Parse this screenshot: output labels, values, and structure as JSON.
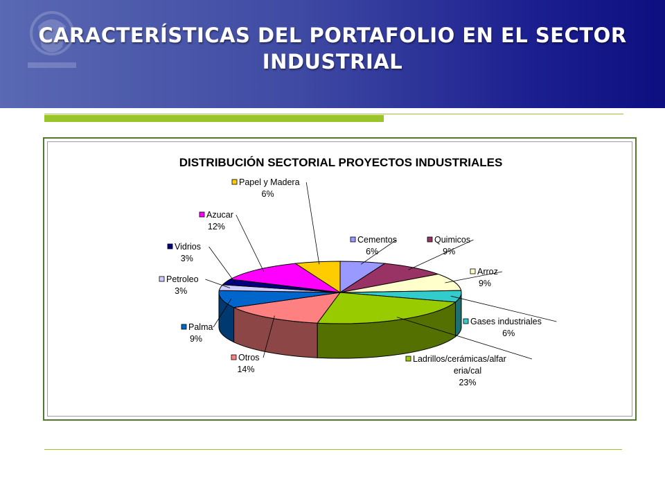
{
  "slide": {
    "title": "CARACTERÍSTICAS DEL PORTAFOLIO EN EL SECTOR INDUSTRIAL"
  },
  "colors": {
    "header_left": "#5a69b3",
    "header_right": "#0d0f80",
    "accent_green": "#9bc42b",
    "frame_green": "#4f7a2c"
  },
  "chart_data": {
    "type": "pie",
    "style": "3d-exploded-labels",
    "title": "DISTRIBUCIÓN SECTORIAL PROYECTOS INDUSTRIALES",
    "legend": "none",
    "data_labels": "category-and-percent",
    "slices": [
      {
        "name": "Cementos",
        "label": "Cementos",
        "value": 6,
        "percent_label": "6%",
        "color": "#9999ff"
      },
      {
        "name": "Quimicos",
        "label": "Quimicos",
        "value": 9,
        "percent_label": "9%",
        "color": "#993366"
      },
      {
        "name": "Arroz",
        "label": "Arroz",
        "value": 9,
        "percent_label": "9%",
        "color": "#ffffcc"
      },
      {
        "name": "Gases industriales",
        "label": "Gases industriales",
        "value": 6,
        "percent_label": "6%",
        "color": "#33cccc"
      },
      {
        "name": "Ladrillos/cerámicas/alfareria/cal",
        "label": [
          "Ladrillos/cerámicas/alfar",
          "eria/cal"
        ],
        "value": 23,
        "percent_label": "23%",
        "color": "#99cc00"
      },
      {
        "name": "Otros",
        "label": "Otros",
        "value": 14,
        "percent_label": "14%",
        "color": "#ff8080"
      },
      {
        "name": "Palma",
        "label": "Palma",
        "value": 9,
        "percent_label": "9%",
        "color": "#0066cc"
      },
      {
        "name": "Petroleo",
        "label": "Petroleo",
        "value": 3,
        "percent_label": "3%",
        "color": "#ccccff"
      },
      {
        "name": "Vidrios",
        "label": "Vidrios",
        "value": 3,
        "percent_label": "3%",
        "color": "#000080"
      },
      {
        "name": "Azucar",
        "label": "Azucar",
        "value": 12,
        "percent_label": "12%",
        "color": "#ff00ff"
      },
      {
        "name": "Papel y Madera",
        "label": "Papel y Madera",
        "value": 6,
        "percent_label": "6%",
        "color": "#ffcc00"
      }
    ]
  }
}
